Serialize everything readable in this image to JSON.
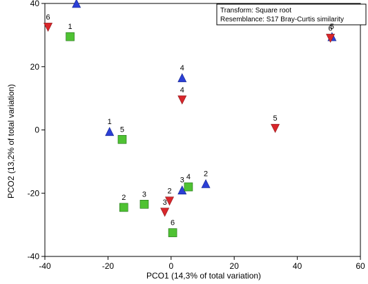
{
  "chart_data": {
    "type": "scatter",
    "title": "",
    "xlabel": "PCO1 (14,3% of total variation)",
    "ylabel": "PCO2 (13,2% of total variation)",
    "xlim": [
      -40,
      60
    ],
    "ylim": [
      -40,
      40
    ],
    "x_ticks": [
      -40,
      -20,
      0,
      20,
      40,
      60
    ],
    "y_ticks": [
      -40,
      -20,
      0,
      20,
      40
    ],
    "grid": false,
    "legend": "none",
    "annotations": [
      "Transform: Square root",
      "Resemblance: S17 Bray-Curtis similarity"
    ],
    "series": [
      {
        "marker": "triangle-up",
        "color": "#2b3fd6",
        "points": [
          {
            "x": -30,
            "y": 40,
            "label": ""
          },
          {
            "x": -19.5,
            "y": -0.5,
            "label": "1"
          },
          {
            "x": 11,
            "y": -17,
            "label": "2"
          },
          {
            "x": 3.5,
            "y": -19,
            "label": "3"
          },
          {
            "x": 3.5,
            "y": 16.5,
            "label": "4"
          },
          {
            "x": 51,
            "y": 29.5,
            "label": "5"
          }
        ]
      },
      {
        "marker": "triangle-down",
        "color": "#d9262b",
        "points": [
          {
            "x": -39,
            "y": 32.5,
            "label": "6"
          },
          {
            "x": -0.5,
            "y": -22.5,
            "label": "2"
          },
          {
            "x": -2,
            "y": -26,
            "label": "3"
          },
          {
            "x": 3.5,
            "y": 9.5,
            "label": "4"
          },
          {
            "x": 33,
            "y": 0.5,
            "label": "5"
          },
          {
            "x": 50.5,
            "y": 29,
            "label": "6"
          }
        ]
      },
      {
        "marker": "square",
        "color": "#4fc233",
        "points": [
          {
            "x": -32,
            "y": 29.5,
            "label": "1"
          },
          {
            "x": -15,
            "y": -24.5,
            "label": "2"
          },
          {
            "x": -8.5,
            "y": -23.5,
            "label": "3"
          },
          {
            "x": 5.5,
            "y": -18,
            "label": "4"
          },
          {
            "x": -15.5,
            "y": -3,
            "label": "5"
          },
          {
            "x": 0.5,
            "y": -32.5,
            "label": "6"
          }
        ]
      }
    ]
  }
}
